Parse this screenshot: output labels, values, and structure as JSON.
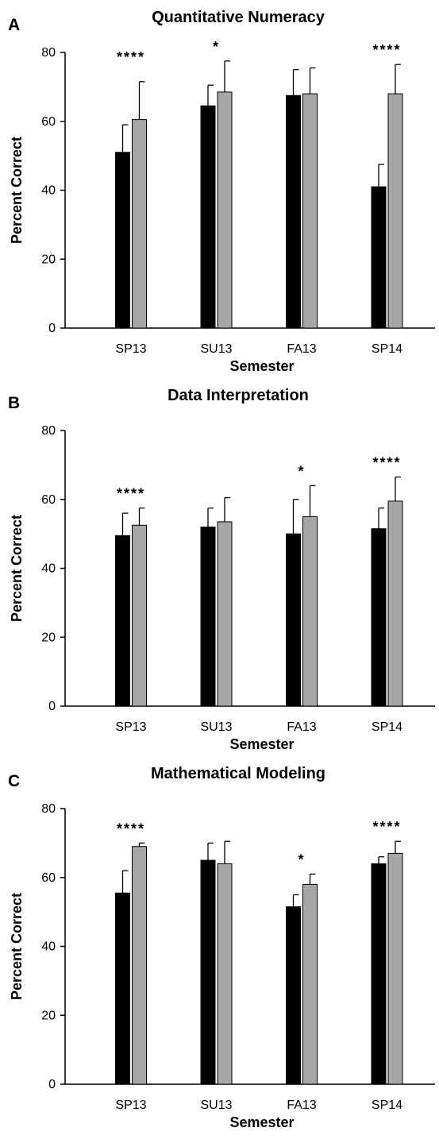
{
  "chart_data": [
    {
      "type": "bar",
      "panel_label": "A",
      "title": "Quantitative Numeracy",
      "xlabel": "Semester",
      "ylabel": "Percent Correct",
      "ylim": [
        0,
        80
      ],
      "yticks": [
        "0",
        "20",
        "40",
        "60",
        "80"
      ],
      "categories": [
        "SP13",
        "SU13",
        "FA13",
        "SP14"
      ],
      "significance": [
        "****",
        "*",
        "",
        "****"
      ],
      "series": [
        {
          "color": "#000000",
          "values": [
            51,
            64.5,
            67.5,
            41
          ],
          "error": [
            8,
            6,
            7.5,
            6.5
          ]
        },
        {
          "color": "#a6a6a6",
          "values": [
            60.5,
            68.5,
            68,
            68
          ],
          "error": [
            11,
            9,
            7.5,
            8.5
          ]
        }
      ]
    },
    {
      "type": "bar",
      "panel_label": "B",
      "title": "Data Interpretation",
      "xlabel": "Semester",
      "ylabel": "Percent Correct",
      "ylim": [
        0,
        80
      ],
      "yticks": [
        "0",
        "20",
        "40",
        "60",
        "80"
      ],
      "categories": [
        "SP13",
        "SU13",
        "FA13",
        "SP14"
      ],
      "significance": [
        "****",
        "",
        "*",
        "****"
      ],
      "series": [
        {
          "color": "#000000",
          "values": [
            49.5,
            52,
            50,
            51.5
          ],
          "error": [
            6.5,
            5.5,
            10,
            6
          ]
        },
        {
          "color": "#a6a6a6",
          "values": [
            52.5,
            53.5,
            55,
            59.5
          ],
          "error": [
            5,
            7,
            9,
            7
          ]
        }
      ]
    },
    {
      "type": "bar",
      "panel_label": "C",
      "title": "Mathematical Modeling",
      "xlabel": "Semester",
      "ylabel": "Percent Correct",
      "ylim": [
        0,
        80
      ],
      "yticks": [
        "0",
        "20",
        "40",
        "60",
        "80"
      ],
      "categories": [
        "SP13",
        "SU13",
        "FA13",
        "SP14"
      ],
      "significance": [
        "****",
        "",
        "*",
        "****"
      ],
      "series": [
        {
          "color": "#000000",
          "values": [
            55.5,
            65,
            51.5,
            64
          ],
          "error": [
            6.5,
            5,
            3.5,
            2
          ]
        },
        {
          "color": "#a6a6a6",
          "values": [
            69,
            64,
            58,
            67
          ],
          "error": [
            1,
            6.5,
            3,
            3.5
          ]
        }
      ]
    }
  ]
}
